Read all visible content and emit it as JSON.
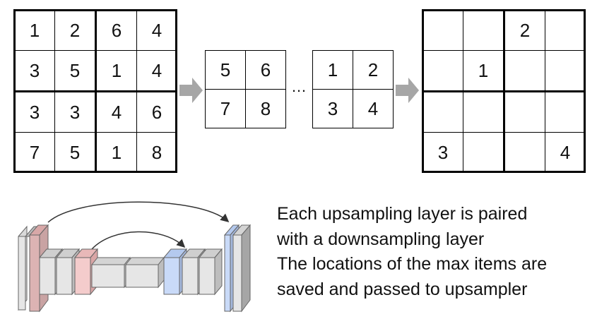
{
  "input_grid": [
    [
      "1",
      "2",
      "6",
      "4"
    ],
    [
      "3",
      "5",
      "1",
      "4"
    ],
    [
      "3",
      "3",
      "4",
      "6"
    ],
    [
      "7",
      "5",
      "1",
      "8"
    ]
  ],
  "pooled_grid_a": [
    [
      "5",
      "6"
    ],
    [
      "7",
      "8"
    ]
  ],
  "pooled_grid_b": [
    [
      "1",
      "2"
    ],
    [
      "3",
      "4"
    ]
  ],
  "ellipsis": "…",
  "output_grid": [
    [
      "",
      "",
      "2",
      ""
    ],
    [
      "",
      "1",
      "",
      ""
    ],
    [
      "",
      "",
      "",
      ""
    ],
    [
      "3",
      "",
      "",
      "4"
    ]
  ],
  "caption_lines": [
    "Each upsampling layer is paired",
    "with a downsampling layer",
    "The locations of the max items are",
    "saved and passed to upsampler"
  ],
  "colors": {
    "arrow": "#a6a6a6",
    "block_gray": "#e6e6e6",
    "block_red": "#f4cccc",
    "block_blue": "#c9daf8",
    "block_dark_red": "#c9a3a3",
    "block_dark_blue": "#a4b8dd"
  }
}
